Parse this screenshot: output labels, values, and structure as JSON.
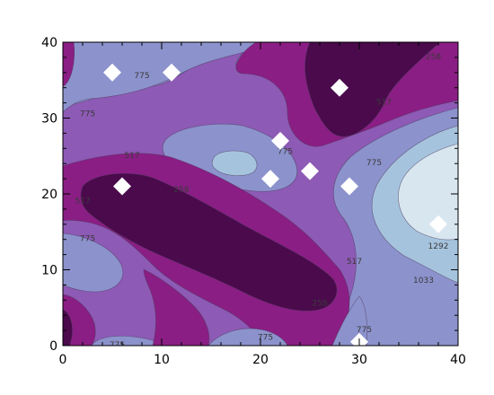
{
  "chart_data": {
    "type": "contour",
    "title": "",
    "xlabel": "",
    "ylabel": "",
    "xlim": [
      0,
      40
    ],
    "ylim": [
      0,
      40
    ],
    "x_ticks": [
      0,
      10,
      20,
      30,
      40
    ],
    "y_ticks": [
      0,
      10,
      20,
      30,
      40
    ],
    "contour_levels": [
      258,
      517,
      775,
      1033,
      1292
    ],
    "fill_colors": {
      "level_lt_258": "#4a0a4c",
      "level_258_517": "#8a1e84",
      "level_517_775": "#8d5ab5",
      "level_775_1033": "#8c92cc",
      "level_1033_1292": "#a6c3de",
      "level_gt_1292": "#d8e6f0"
    },
    "contour_labels": [
      {
        "text": "775",
        "x": 8,
        "y": 35.5
      },
      {
        "text": "775",
        "x": 2.5,
        "y": 30.5
      },
      {
        "text": "517",
        "x": 7,
        "y": 25
      },
      {
        "text": "517",
        "x": 2,
        "y": 19
      },
      {
        "text": "258",
        "x": 12,
        "y": 20.5
      },
      {
        "text": "775",
        "x": 2.5,
        "y": 14
      },
      {
        "text": "775",
        "x": 22.5,
        "y": 25.5
      },
      {
        "text": "517",
        "x": 32.5,
        "y": 32
      },
      {
        "text": "258",
        "x": 37.5,
        "y": 38
      },
      {
        "text": "775",
        "x": 31.5,
        "y": 24
      },
      {
        "text": "517",
        "x": 29.5,
        "y": 11
      },
      {
        "text": "258",
        "x": 26,
        "y": 5.5
      },
      {
        "text": "1033",
        "x": 36.5,
        "y": 8.5
      },
      {
        "text": "1292",
        "x": 38,
        "y": 13
      },
      {
        "text": "775",
        "x": 30.5,
        "y": 2
      },
      {
        "text": "775",
        "x": 20.5,
        "y": 1
      },
      {
        "text": "775",
        "x": 5.5,
        "y": 0
      }
    ],
    "points": [
      {
        "x": 5,
        "y": 36
      },
      {
        "x": 11,
        "y": 36
      },
      {
        "x": 28,
        "y": 34
      },
      {
        "x": 22,
        "y": 27
      },
      {
        "x": 25,
        "y": 23
      },
      {
        "x": 21,
        "y": 22
      },
      {
        "x": 29,
        "y": 21
      },
      {
        "x": 6,
        "y": 21
      },
      {
        "x": 38,
        "y": 16
      },
      {
        "x": 30,
        "y": 0.5
      }
    ],
    "marker_color": "#ffffff"
  }
}
